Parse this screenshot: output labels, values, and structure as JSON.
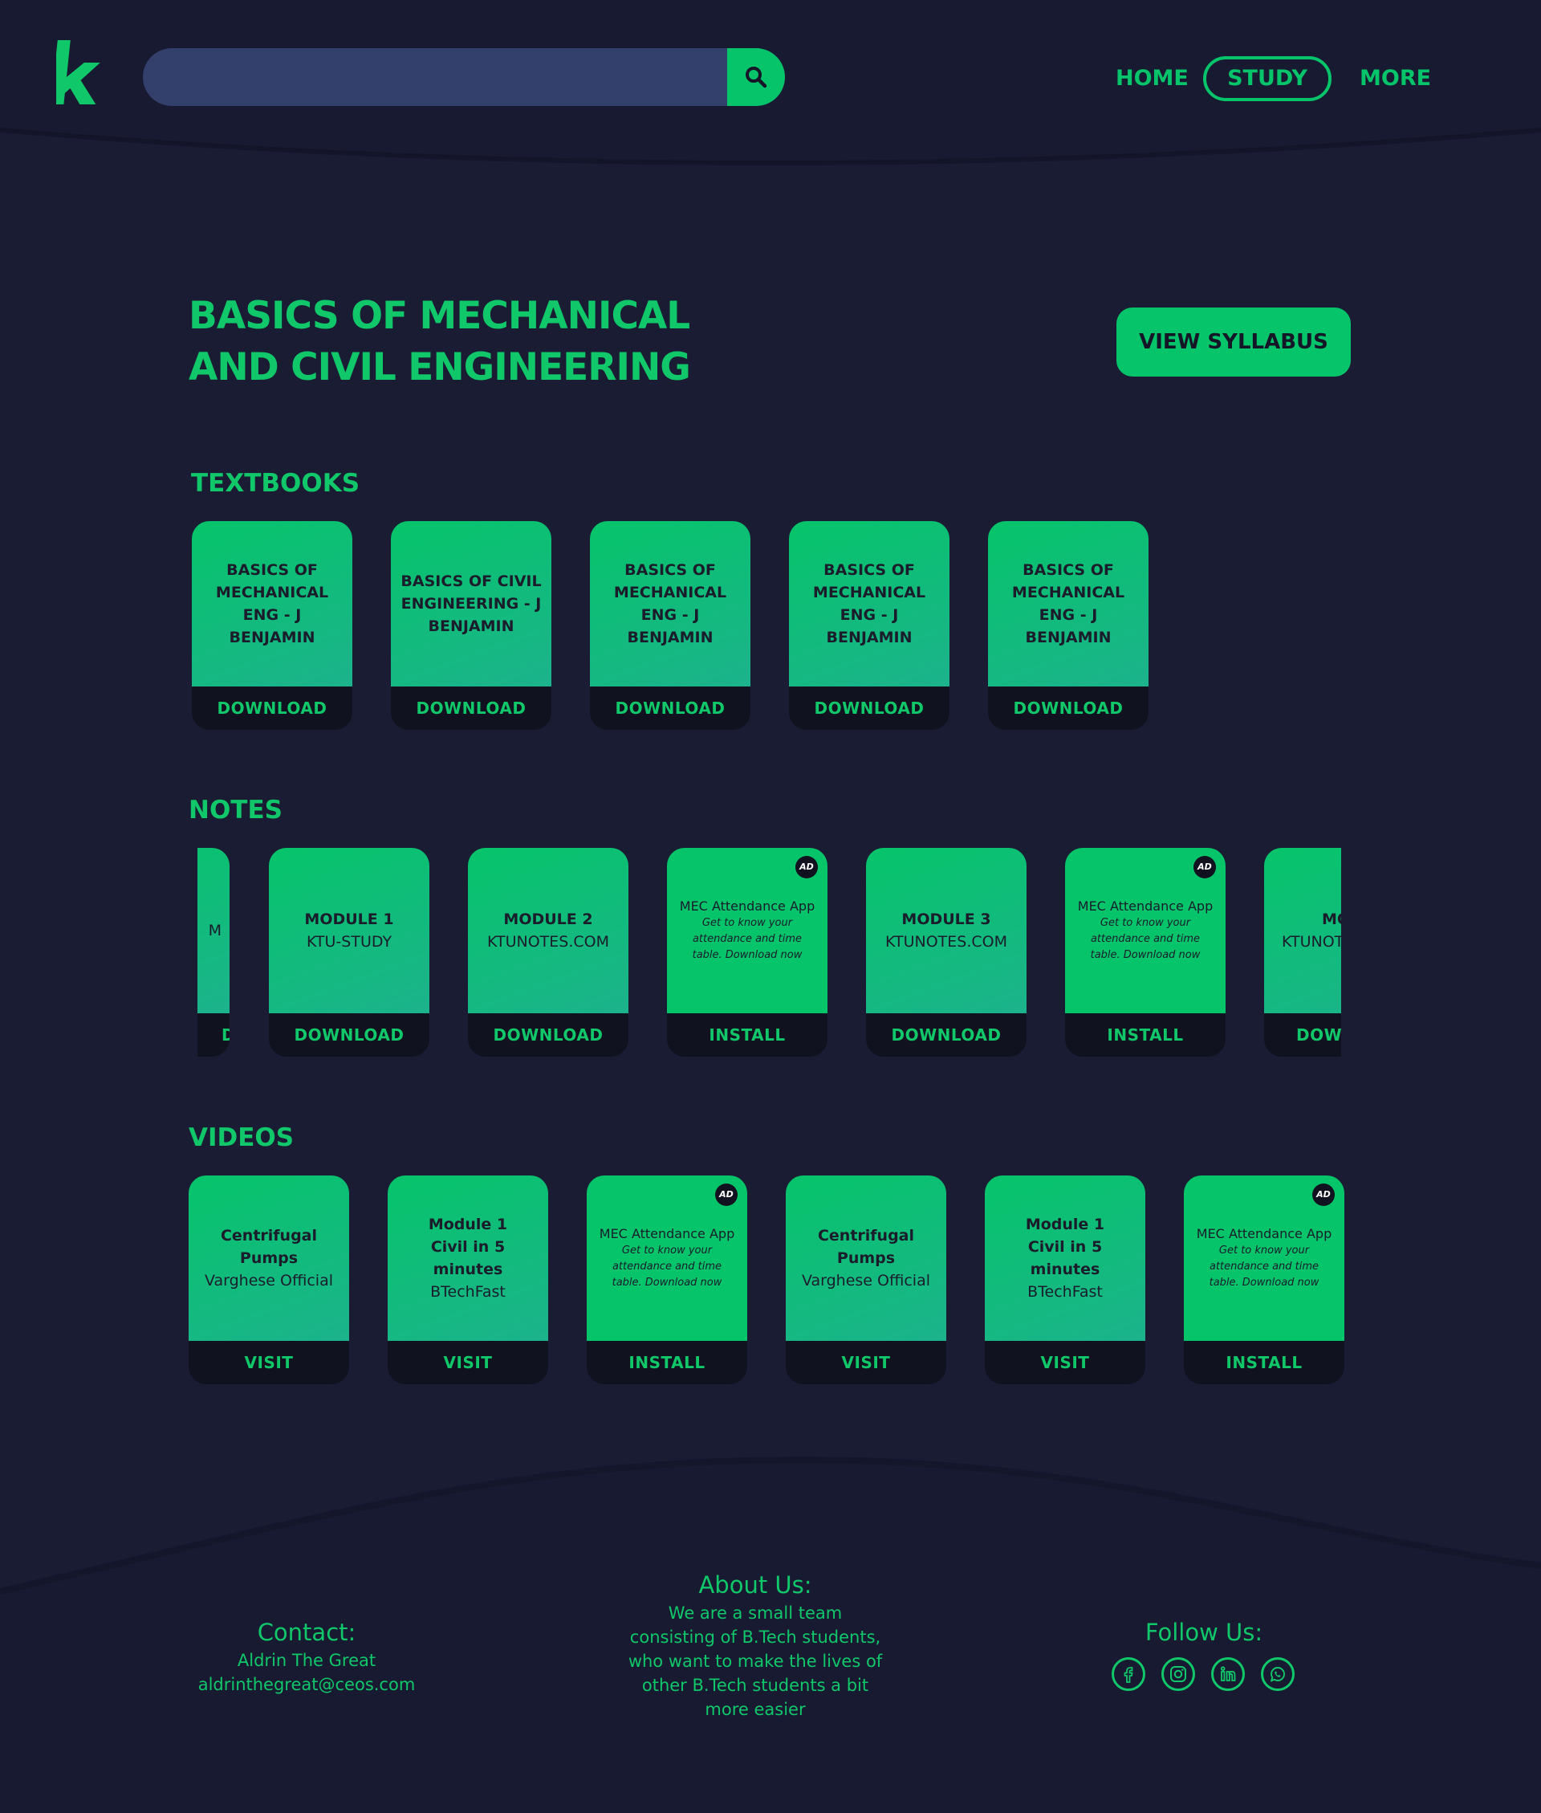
{
  "header": {
    "logo": "k",
    "search": {
      "value": "",
      "placeholder": ""
    },
    "nav": {
      "home": "HOME",
      "study": "STUDY",
      "more": "MORE"
    }
  },
  "main": {
    "title_line1": "BASICS OF MECHANICAL",
    "title_line2": "AND CIVIL ENGINEERING",
    "view_syllabus": "VIEW SYLLABUS"
  },
  "textbooks": {
    "heading": "TEXTBOOKS",
    "items": [
      {
        "title": "BASICS OF MECHANICAL ENG - J BENJAMIN",
        "action": "DOWNLOAD"
      },
      {
        "title": "BASICS OF CIVIL ENGINEERING - J BENJAMIN",
        "action": "DOWNLOAD"
      },
      {
        "title": "BASICS OF MECHANICAL ENG - J BENJAMIN",
        "action": "DOWNLOAD"
      },
      {
        "title": "BASICS OF MECHANICAL ENG - J BENJAMIN",
        "action": "DOWNLOAD"
      },
      {
        "title": "BASICS OF MECHANICAL ENG - J BENJAMIN",
        "action": "DOWNLOAD"
      }
    ]
  },
  "notes": {
    "heading": "NOTES",
    "partial_left": {
      "sub": "M",
      "action": "D"
    },
    "items": [
      {
        "title": "MODULE 1",
        "sub": "KTU-STUDY",
        "action": "DOWNLOAD"
      },
      {
        "title": "MODULE 2",
        "sub": "KTUNOTES.COM",
        "action": "DOWNLOAD"
      },
      {
        "ad": true,
        "badge": "AD",
        "title": "MEC Attendance App",
        "desc": "Get to know your attendance and time table. Download now",
        "action": "INSTALL"
      },
      {
        "title": "MODULE 3",
        "sub": "KTUNOTES.COM",
        "action": "DOWNLOAD"
      },
      {
        "ad": true,
        "badge": "AD",
        "title": "MEC Attendance App",
        "desc": "Get to know your attendance and time table. Download now",
        "action": "INSTALL"
      }
    ],
    "partial_right": {
      "title": "MOD",
      "sub": "KTUNOT",
      "action": "DOWI"
    }
  },
  "videos": {
    "heading": "VIDEOS",
    "items": [
      {
        "title": "Centrifugal Pumps",
        "sub": "Varghese Official",
        "action": "VISIT"
      },
      {
        "title": "Module 1 Civil in 5 minutes",
        "sub": "BTechFast",
        "action": "VISIT"
      },
      {
        "ad": true,
        "badge": "AD",
        "title": "MEC Attendance App",
        "desc": "Get to know your attendance and time table. Download now",
        "action": "INSTALL"
      },
      {
        "title": "Centrifugal Pumps",
        "sub": "Varghese Official",
        "action": "VISIT"
      },
      {
        "title": "Module 1 Civil in 5 minutes",
        "sub": "BTechFast",
        "action": "VISIT"
      },
      {
        "ad": true,
        "badge": "AD",
        "title": "MEC Attendance App",
        "desc": "Get to know your attendance and time table. Download now",
        "action": "INSTALL"
      }
    ]
  },
  "footer": {
    "contact": {
      "heading": "Contact:",
      "name": "Aldrin The Great",
      "email": "aldrinthegreat@ceos.com"
    },
    "about": {
      "heading": "About Us:",
      "lines": [
        "We are a small team",
        "consisting of B.Tech students,",
        "who want to make the lives of",
        "other B.Tech students a bit",
        "more easier"
      ]
    },
    "follow": {
      "heading": "Follow Us:",
      "icons": [
        "facebook-icon",
        "instagram-icon",
        "linkedin-icon",
        "whatsapp-icon"
      ]
    }
  },
  "colors": {
    "background": "#1a1c34",
    "accent": "#06c46a",
    "search": "#33406b",
    "card_bottom": "#11121f"
  }
}
